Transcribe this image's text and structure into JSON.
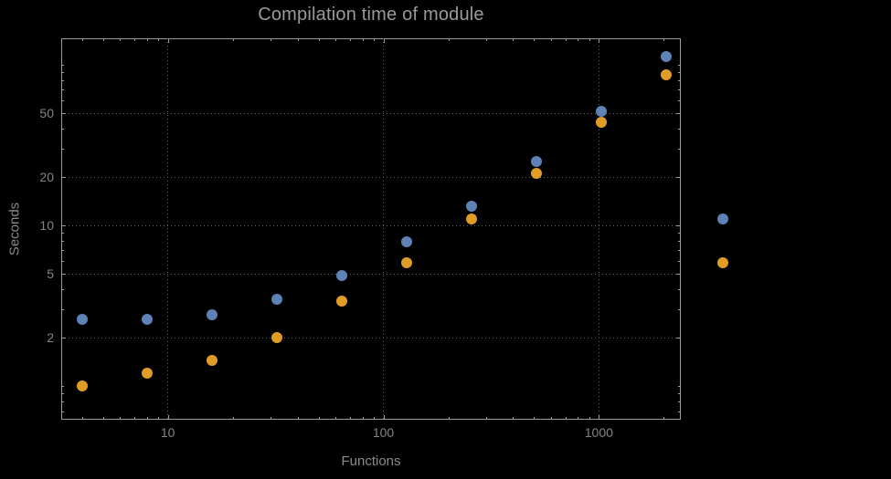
{
  "colors": {
    "background": "#000000",
    "frame": "#9b9b9b",
    "grid": "#5f5f5f",
    "title_text": "#9a9a9a",
    "tick_text": "#848484",
    "axis_label_text": "#8a8a8a",
    "series_blue": "#5e82b5",
    "series_orange": "#e09c24"
  },
  "chart_data": {
    "type": "scatter",
    "title": "Compilation time of module",
    "xlabel": "Functions",
    "ylabel": "Seconds",
    "x_scale": "log",
    "y_scale": "log",
    "xlim": [
      3.2,
      2400
    ],
    "ylim": [
      0.62,
      146
    ],
    "grid": "dotted",
    "x_ticks": [
      {
        "value": 10,
        "label": "10"
      },
      {
        "value": 100,
        "label": "100"
      },
      {
        "value": 1000,
        "label": "1000"
      }
    ],
    "y_ticks": [
      {
        "value": 2,
        "label": "2"
      },
      {
        "value": 5,
        "label": "5"
      },
      {
        "value": 10,
        "label": "10"
      },
      {
        "value": 20,
        "label": "20"
      },
      {
        "value": 50,
        "label": "50"
      }
    ],
    "x": [
      4,
      8,
      16,
      32,
      64,
      128,
      256,
      512,
      1024,
      2048
    ],
    "series": [
      {
        "name": "blue",
        "color": "#5e82b5",
        "values": [
          2.6,
          2.6,
          2.8,
          3.5,
          4.9,
          7.9,
          13.2,
          25,
          51,
          112
        ]
      },
      {
        "name": "orange",
        "color": "#e09c24",
        "values": [
          1.0,
          1.2,
          1.45,
          2.0,
          3.4,
          5.9,
          11,
          21,
          44,
          87
        ]
      }
    ],
    "legend": {
      "position": "right-center",
      "entries": [
        {
          "series": "blue",
          "color": "#5e82b5"
        },
        {
          "series": "orange",
          "color": "#e09c24"
        }
      ]
    }
  }
}
